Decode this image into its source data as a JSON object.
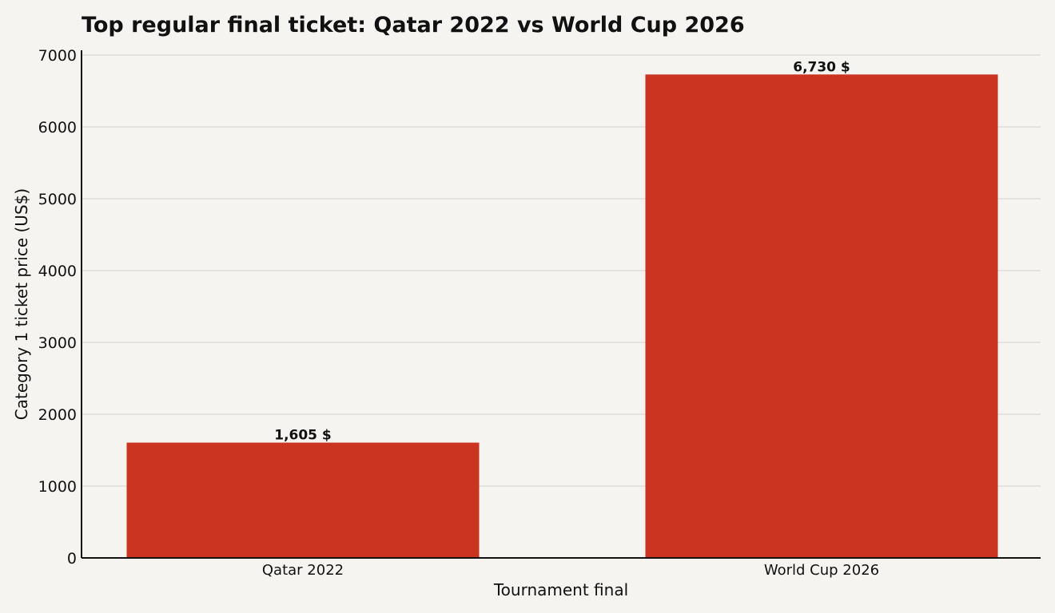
{
  "chart_data": {
    "type": "bar",
    "title": "Top regular final ticket: Qatar 2022 vs World Cup 2026",
    "xlabel": "Tournament final",
    "ylabel": "Category 1 ticket price (US$)",
    "categories": [
      "Qatar 2022",
      "World Cup 2026"
    ],
    "values": [
      1605,
      6730
    ],
    "data_labels": [
      "1,605 $",
      "6,730 $"
    ],
    "ylim": [
      0,
      7000
    ],
    "yticks": [
      "0",
      "1000",
      "2000",
      "3000",
      "4000",
      "5000",
      "6000",
      "7000"
    ],
    "grid": "horizontal",
    "colors": {
      "bar": "#cb3420",
      "grid": "#dcdbd7",
      "axis": "#111111",
      "background": "#f5f4f0"
    }
  }
}
